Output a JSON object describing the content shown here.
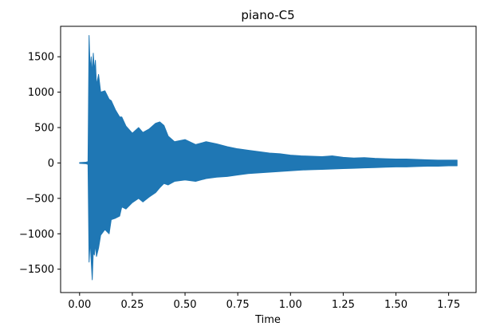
{
  "chart_data": {
    "type": "area",
    "title": "piano-C5",
    "xlabel": "Time",
    "ylabel": "",
    "xlim": [
      -0.09,
      1.88
    ],
    "ylim": [
      -1830,
      1930
    ],
    "x_ticks": [
      0.0,
      0.25,
      0.5,
      0.75,
      1.0,
      1.25,
      1.5,
      1.75
    ],
    "x_tick_labels": [
      "0.00",
      "0.25",
      "0.50",
      "0.75",
      "1.00",
      "1.25",
      "1.50",
      "1.75"
    ],
    "y_ticks": [
      -1500,
      -1000,
      -500,
      0,
      500,
      1000,
      1500
    ],
    "y_tick_labels": [
      "−1500",
      "−1000",
      "−500",
      "0",
      "500",
      "1000",
      "1500"
    ],
    "grid": false,
    "color": "#1f77b4",
    "series": [
      {
        "x": [
          0.0,
          0.03,
          0.04,
          0.045,
          0.05,
          0.055,
          0.06,
          0.065,
          0.07,
          0.075,
          0.08,
          0.09,
          0.1,
          0.12,
          0.14,
          0.15,
          0.17,
          0.19,
          0.2,
          0.22,
          0.25,
          0.28,
          0.3,
          0.33,
          0.36,
          0.38,
          0.4,
          0.42,
          0.45,
          0.5,
          0.55,
          0.6,
          0.65,
          0.7,
          0.75,
          0.8,
          0.85,
          0.9,
          0.95,
          1.0,
          1.05,
          1.1,
          1.15,
          1.2,
          1.25,
          1.3,
          1.35,
          1.4,
          1.45,
          1.5,
          1.55,
          1.6,
          1.65,
          1.7,
          1.75,
          1.79
        ],
        "upper": [
          5,
          10,
          20,
          1800,
          1300,
          1500,
          1250,
          1550,
          1300,
          1450,
          1100,
          1250,
          1000,
          1020,
          900,
          880,
          750,
          650,
          650,
          520,
          420,
          500,
          430,
          480,
          560,
          580,
          530,
          380,
          300,
          330,
          260,
          300,
          270,
          230,
          200,
          180,
          160,
          140,
          130,
          110,
          100,
          95,
          90,
          100,
          80,
          70,
          75,
          65,
          60,
          55,
          55,
          50,
          45,
          40,
          40,
          40
        ],
        "lower": [
          -5,
          -10,
          -20,
          -1400,
          -1100,
          -1380,
          -1650,
          -1250,
          -1300,
          -1150,
          -1320,
          -1200,
          -1020,
          -940,
          -1000,
          -800,
          -780,
          -750,
          -620,
          -650,
          -560,
          -500,
          -550,
          -480,
          -420,
          -350,
          -290,
          -310,
          -260,
          -240,
          -260,
          -220,
          -200,
          -190,
          -170,
          -150,
          -140,
          -130,
          -120,
          -110,
          -100,
          -95,
          -90,
          -85,
          -80,
          -75,
          -70,
          -65,
          -60,
          -55,
          -55,
          -50,
          -45,
          -45,
          -40,
          -40
        ]
      }
    ]
  }
}
